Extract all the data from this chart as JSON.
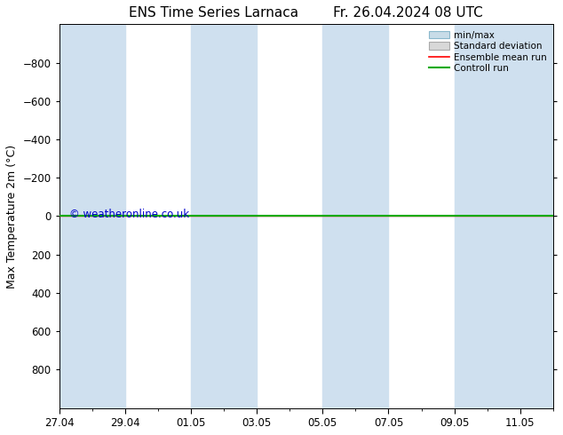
{
  "title": "ENS Time Series Larnaca        Fr. 26.04.2024 08 UTC",
  "ylabel": "Max Temperature 2m (°C)",
  "ylim_bottom": -1000,
  "ylim_top": 1000,
  "yticks": [
    -800,
    -600,
    -400,
    -200,
    0,
    200,
    400,
    600,
    800
  ],
  "x_start": "2024-04-27",
  "x_end": "2024-05-12",
  "x_tick_labels": [
    "27.04",
    "29.04",
    "01.05",
    "03.05",
    "05.05",
    "07.05",
    "09.05",
    "11.05"
  ],
  "x_tick_days": [
    0,
    2,
    4,
    6,
    8,
    10,
    12,
    14
  ],
  "num_days": 15,
  "shaded_bands": [
    {
      "start": 0,
      "end": 2
    },
    {
      "start": 4,
      "end": 6
    },
    {
      "start": 8,
      "end": 10
    },
    {
      "start": 12,
      "end": 15
    }
  ],
  "shaded_color": "#cfe0ef",
  "horizontal_line_y": 0,
  "line_color_red": "#ff0000",
  "line_color_green": "#00aa00",
  "legend_labels": [
    "min/max",
    "Standard deviation",
    "Ensemble mean run",
    "Controll run"
  ],
  "legend_minmax_face": "#c8dce8",
  "legend_minmax_edge": "#8ab8cc",
  "legend_std_face": "#d8d8d8",
  "legend_std_edge": "#aaaaaa",
  "watermark": "© weatheronline.co.uk",
  "watermark_color": "#0000cc",
  "background_color": "#ffffff",
  "title_fontsize": 11,
  "label_fontsize": 9,
  "tick_fontsize": 8.5,
  "legend_fontsize": 7.5
}
